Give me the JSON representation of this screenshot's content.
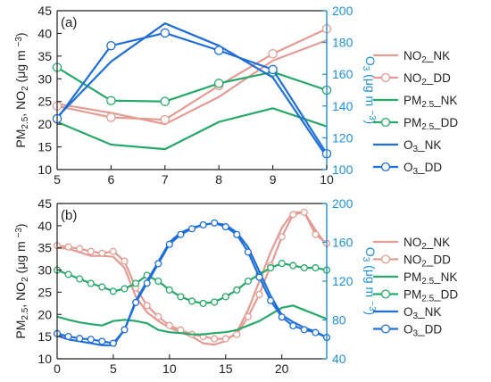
{
  "colors": {
    "no2_nk": "#e39c93",
    "no2_dd": "#e39c93",
    "pm_nk": "#27a869",
    "pm_dd": "#27a869",
    "o3_nk": "#1f6fd6",
    "o3_dd": "#1f6fd6",
    "right_axis": "#1f8fd6",
    "axis": "#222222"
  },
  "chart_data": [
    {
      "type": "line",
      "panel_label": "(a)",
      "x": [
        5,
        6,
        7,
        8,
        9,
        10
      ],
      "xlim": [
        5,
        10
      ],
      "x_ticks": [
        "5",
        "6",
        "7",
        "8",
        "9",
        "10"
      ],
      "ylabel_left": "PM2.5, NO2 (μg m−3)",
      "ylabel_right": "O3 (μg m−3)",
      "ylim_left": [
        10,
        45
      ],
      "ylim_right": [
        100,
        200
      ],
      "y_ticks_left": [
        "10",
        "15",
        "20",
        "25",
        "30",
        "35",
        "40",
        "45"
      ],
      "y_ticks_right": [
        "100",
        "120",
        "140",
        "160",
        "180",
        "200"
      ],
      "grid": false,
      "legend_position": "right",
      "series": [
        {
          "name": "NO2_NK",
          "axis": "left",
          "marker": false,
          "values": [
            24.5,
            22.5,
            20.0,
            26.0,
            34.0,
            38.5
          ]
        },
        {
          "name": "NO2_DD",
          "axis": "left",
          "marker": true,
          "values": [
            24.0,
            21.5,
            21.0,
            28.5,
            35.5,
            41.0
          ]
        },
        {
          "name": "PM2.5_NK",
          "axis": "left",
          "marker": false,
          "values": [
            20.5,
            15.5,
            14.5,
            20.5,
            23.5,
            19.5
          ]
        },
        {
          "name": "PM2.5_DD",
          "axis": "left",
          "marker": true,
          "values": [
            32.5,
            25.2,
            25.0,
            29.0,
            31.5,
            27.5
          ]
        },
        {
          "name": "O3_NK",
          "axis": "right",
          "marker": false,
          "values": [
            133,
            168,
            192,
            178,
            158,
            108
          ]
        },
        {
          "name": "O3_DD",
          "axis": "right",
          "marker": true,
          "values": [
            132,
            178,
            186,
            175,
            163,
            110
          ]
        }
      ]
    },
    {
      "type": "line",
      "panel_label": "(b)",
      "x": [
        0,
        1,
        2,
        3,
        4,
        5,
        6,
        7,
        8,
        9,
        10,
        11,
        12,
        13,
        14,
        15,
        16,
        17,
        18,
        19,
        20,
        21,
        22,
        23,
        24
      ],
      "xlim": [
        0,
        24
      ],
      "x_ticks": [
        "0",
        "5",
        "10",
        "15",
        "20"
      ],
      "ylabel_left": "PM2.5, NO2 (μg m−3)",
      "ylabel_right": "O3 (μg m−3)",
      "ylim_left": [
        10,
        45
      ],
      "ylim_right": [
        40,
        200
      ],
      "y_ticks_left": [
        "10",
        "15",
        "20",
        "25",
        "30",
        "35",
        "40",
        "45"
      ],
      "y_ticks_right": [
        "40",
        "80",
        "120",
        "160",
        "200"
      ],
      "grid": false,
      "legend_position": "right",
      "series": [
        {
          "name": "NO2_NK",
          "axis": "left",
          "marker": false,
          "values": [
            35.0,
            34.8,
            34.0,
            33.2,
            33.2,
            33.0,
            30.5,
            24.0,
            20.5,
            18.5,
            17.0,
            16.0,
            15.0,
            13.5,
            13.2,
            14.0,
            16.0,
            21.0,
            27.5,
            34.0,
            39.5,
            43.0,
            43.0,
            39.0,
            35.5
          ]
        },
        {
          "name": "NO2_DD",
          "axis": "left",
          "marker": true,
          "values": [
            35.5,
            35.2,
            34.8,
            34.2,
            33.8,
            34.2,
            32.0,
            26.0,
            22.0,
            19.5,
            17.5,
            16.5,
            15.5,
            15.0,
            14.5,
            14.5,
            15.5,
            19.5,
            24.5,
            31.0,
            37.5,
            42.5,
            43.0,
            38.0,
            36.0
          ]
        },
        {
          "name": "PM2.5_NK",
          "axis": "left",
          "marker": false,
          "values": [
            19.5,
            18.8,
            18.2,
            17.8,
            17.5,
            18.5,
            18.8,
            18.5,
            18.0,
            16.5,
            16.0,
            15.8,
            15.5,
            15.5,
            15.8,
            16.0,
            16.5,
            17.5,
            18.5,
            20.0,
            21.5,
            22.0,
            21.0,
            20.0,
            19.0
          ]
        },
        {
          "name": "PM2.5_DD",
          "axis": "left",
          "marker": true,
          "values": [
            30.0,
            29.0,
            28.0,
            27.0,
            26.2,
            25.2,
            25.8,
            27.0,
            28.8,
            27.5,
            25.5,
            24.0,
            23.0,
            22.5,
            22.8,
            24.0,
            25.5,
            27.5,
            29.0,
            30.5,
            31.5,
            31.0,
            30.5,
            30.5,
            30.0
          ]
        },
        {
          "name": "O3_NK",
          "axis": "right",
          "marker": false,
          "values": [
            64,
            60,
            58,
            56,
            54,
            54,
            70,
            100,
            120,
            140,
            160,
            170,
            175,
            178,
            180,
            178,
            170,
            155,
            130,
            105,
            85,
            78,
            72,
            68,
            62
          ]
        },
        {
          "name": "O3_DD",
          "axis": "right",
          "marker": true,
          "values": [
            66,
            63,
            61,
            60,
            58,
            56,
            70,
            98,
            118,
            138,
            158,
            168,
            174,
            178,
            180,
            176,
            168,
            150,
            124,
            100,
            83,
            74,
            70,
            67,
            62
          ]
        }
      ]
    }
  ]
}
